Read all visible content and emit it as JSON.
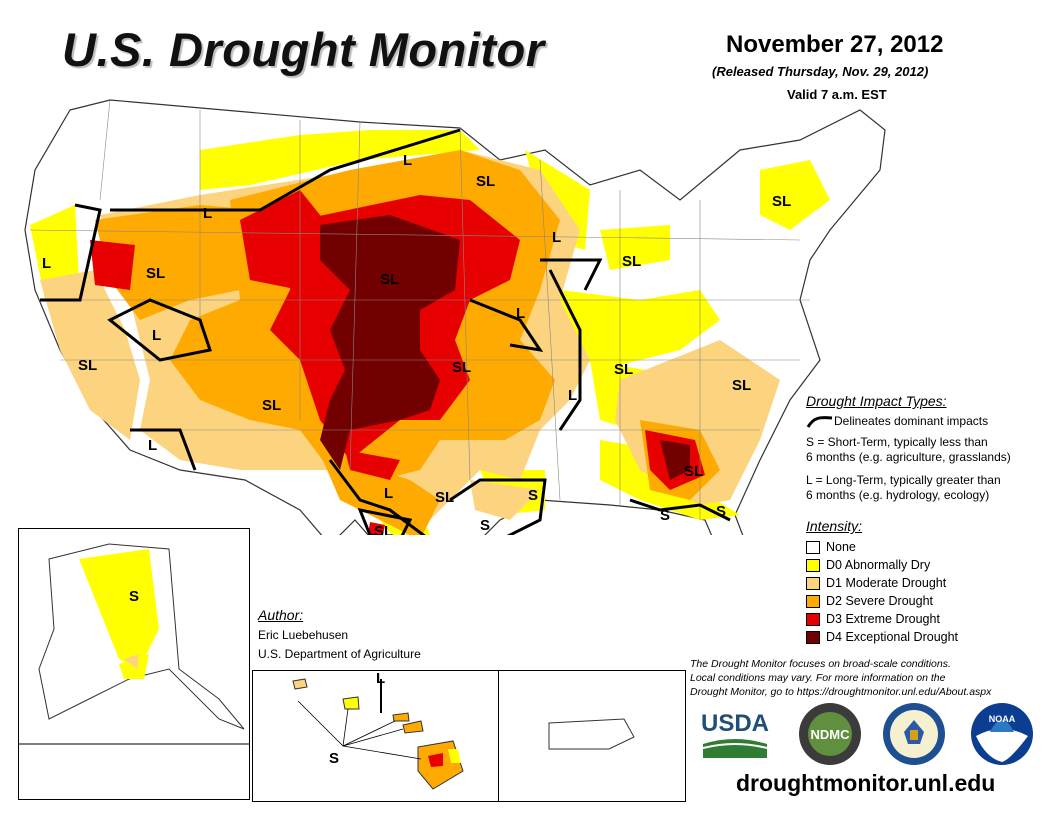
{
  "header": {
    "title": "U.S. Drought Monitor",
    "date": "November 27, 2012",
    "released": "(Released Thursday, Nov. 29, 2012)",
    "valid": "Valid 7 a.m. EST"
  },
  "map": {
    "region_labels": [
      "L",
      "SL",
      "L",
      "SL",
      "L",
      "SL",
      "SL",
      "SL",
      "L",
      "SL",
      "SL",
      "L",
      "SL",
      "L",
      "SL",
      "SL",
      "L",
      "SL",
      "S",
      "S",
      "SL",
      "L",
      "SL",
      "S",
      "S"
    ],
    "inset_labels": {
      "alaska": "S",
      "hawaii_s": "S",
      "hawaii_l": "L"
    }
  },
  "impact_legend": {
    "heading": "Drought Impact Types:",
    "delineates": "Delineates dominant impacts",
    "short_term_line1": "S = Short-Term, typically less than",
    "short_term_line2": "6 months (e.g. agriculture, grasslands)",
    "long_term_line1": "L = Long-Term, typically greater than",
    "long_term_line2": "6 months (e.g. hydrology, ecology)"
  },
  "intensity_legend": {
    "heading": "Intensity:",
    "items": [
      {
        "label": "None",
        "color": "#ffffff"
      },
      {
        "label": "D0 Abnormally Dry",
        "color": "#ffff00"
      },
      {
        "label": "D1 Moderate Drought",
        "color": "#fcd37f"
      },
      {
        "label": "D2 Severe Drought",
        "color": "#ffaa00"
      },
      {
        "label": "D3 Extreme Drought",
        "color": "#e60000"
      },
      {
        "label": "D4 Exceptional Drought",
        "color": "#730000"
      }
    ]
  },
  "author": {
    "heading": "Author:",
    "name": "Eric Luebehusen",
    "org": "U.S. Department of Agriculture"
  },
  "note": {
    "line1": "The Drought Monitor focuses on broad-scale conditions.",
    "line2": "Local conditions may vary. For more information on the",
    "line3": "Drought Monitor, go to https://droughtmonitor.unl.edu/About.aspx"
  },
  "logos": {
    "usda": "USDA",
    "ndmc": "NDMC",
    "noaa": "NOAA"
  },
  "website": "droughtmonitor.unl.edu"
}
